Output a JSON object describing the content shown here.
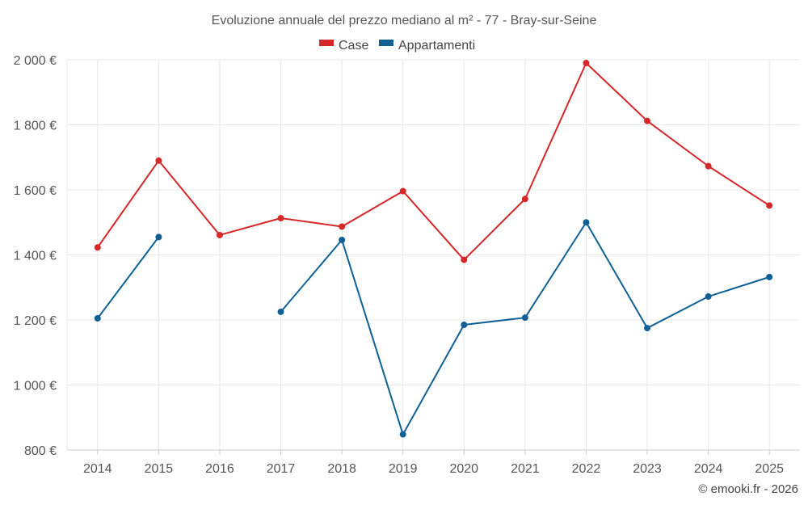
{
  "chart_data": {
    "type": "line",
    "title": "Evoluzione annuale del prezzo mediano al m² - 77 - Bray-sur-Seine",
    "categories": [
      "2014",
      "2015",
      "2016",
      "2017",
      "2018",
      "2019",
      "2020",
      "2021",
      "2022",
      "2023",
      "2024",
      "2025"
    ],
    "ylim": [
      800,
      2000
    ],
    "yticks": [
      800,
      1000,
      1200,
      1400,
      1600,
      1800,
      2000
    ],
    "ytick_labels": [
      "800 €",
      "1 000 €",
      "1 200 €",
      "1 400 €",
      "1 600 €",
      "1 800 €",
      "2 000 €"
    ],
    "grid": true,
    "legend_position": "top-center",
    "series": [
      {
        "name": "Case",
        "color": "#d62728",
        "values": [
          1423,
          1690,
          1461,
          1513,
          1487,
          1596,
          1385,
          1572,
          1990,
          1812,
          1673,
          1552
        ]
      },
      {
        "name": "Appartamenti",
        "color": "#0f6195",
        "values": [
          1205,
          1455,
          null,
          1225,
          1446,
          848,
          1185,
          1207,
          1500,
          1175,
          1272,
          1332
        ]
      }
    ]
  },
  "credit": "© emooki.fr - 2026"
}
